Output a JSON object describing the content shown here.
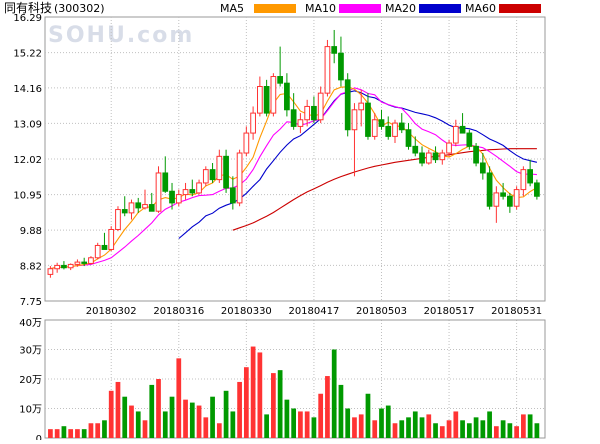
{
  "header": {
    "title": "同有科技",
    "code": "(300302)",
    "watermark": "SOHU.com"
  },
  "legend": [
    {
      "label": "MA5",
      "color": "#ff9900"
    },
    {
      "label": "MA10",
      "color": "#ff00ff"
    },
    {
      "label": "MA20",
      "color": "#0000cc"
    },
    {
      "label": "MA60",
      "color": "#cc0000"
    }
  ],
  "colors": {
    "up": "#ff3333",
    "down": "#009900",
    "grid": "#c0c0c0"
  },
  "chart_data": [
    {
      "type": "candlestick",
      "price_ticks": [
        "16.29",
        "15.22",
        "14.16",
        "13.09",
        "12.02",
        "10.95",
        "9.88",
        "8.82",
        "7.75"
      ],
      "ylim": [
        7.75,
        16.29
      ],
      "x_labels": [
        {
          "label": "20180302",
          "idx": 9
        },
        {
          "label": "20180316",
          "idx": 19
        },
        {
          "label": "20180330",
          "idx": 29
        },
        {
          "label": "20180417",
          "idx": 39
        },
        {
          "label": "20180503",
          "idx": 49
        },
        {
          "label": "20180517",
          "idx": 59
        },
        {
          "label": "20180531",
          "idx": 69
        }
      ],
      "ohlc": [
        [
          8.55,
          8.8,
          8.45,
          8.72
        ],
        [
          8.72,
          8.9,
          8.6,
          8.82
        ],
        [
          8.82,
          8.95,
          8.7,
          8.75
        ],
        [
          8.75,
          8.88,
          8.68,
          8.85
        ],
        [
          8.85,
          9.0,
          8.78,
          8.92
        ],
        [
          8.92,
          9.05,
          8.8,
          8.88
        ],
        [
          8.88,
          9.1,
          8.85,
          9.05
        ],
        [
          9.05,
          9.5,
          9.0,
          9.42
        ],
        [
          9.42,
          9.8,
          9.35,
          9.3
        ],
        [
          9.3,
          10.0,
          9.25,
          9.9
        ],
        [
          9.9,
          10.6,
          9.85,
          10.5
        ],
        [
          10.5,
          10.9,
          10.3,
          10.4
        ],
        [
          10.4,
          10.8,
          10.2,
          10.7
        ],
        [
          10.7,
          10.85,
          10.4,
          10.55
        ],
        [
          10.55,
          11.1,
          10.5,
          10.65
        ],
        [
          10.65,
          11.0,
          10.5,
          10.45
        ],
        [
          10.45,
          11.8,
          10.4,
          11.6
        ],
        [
          11.6,
          12.1,
          11.0,
          11.05
        ],
        [
          11.05,
          11.3,
          10.5,
          10.7
        ],
        [
          10.7,
          11.1,
          10.6,
          10.95
        ],
        [
          10.95,
          11.3,
          10.8,
          11.1
        ],
        [
          11.1,
          11.4,
          10.9,
          11.0
        ],
        [
          11.0,
          11.4,
          10.95,
          11.3
        ],
        [
          11.3,
          11.8,
          11.2,
          11.7
        ],
        [
          11.7,
          11.9,
          11.3,
          11.4
        ],
        [
          11.4,
          12.3,
          11.3,
          12.1
        ],
        [
          12.1,
          12.3,
          11.0,
          11.15
        ],
        [
          11.15,
          11.5,
          10.5,
          10.7
        ],
        [
          10.7,
          12.3,
          10.6,
          12.2
        ],
        [
          12.2,
          13.0,
          12.1,
          12.8
        ],
        [
          12.8,
          13.6,
          12.6,
          13.4
        ],
        [
          13.4,
          14.5,
          13.3,
          14.2
        ],
        [
          14.2,
          14.4,
          13.3,
          13.4
        ],
        [
          13.4,
          14.6,
          13.3,
          14.5
        ],
        [
          14.5,
          15.4,
          14.2,
          14.3
        ],
        [
          14.3,
          14.6,
          13.3,
          13.5
        ],
        [
          13.5,
          14.0,
          12.9,
          13.0
        ],
        [
          13.0,
          13.4,
          12.8,
          13.2
        ],
        [
          13.2,
          13.8,
          13.0,
          13.6
        ],
        [
          13.6,
          13.9,
          13.1,
          13.2
        ],
        [
          13.2,
          14.2,
          13.1,
          14.0
        ],
        [
          14.0,
          15.6,
          13.9,
          15.4
        ],
        [
          15.4,
          15.9,
          14.9,
          15.2
        ],
        [
          15.2,
          15.7,
          14.2,
          14.4
        ],
        [
          14.4,
          14.6,
          12.7,
          12.9
        ],
        [
          12.9,
          13.7,
          11.5,
          13.5
        ],
        [
          13.5,
          14.1,
          13.0,
          13.7
        ],
        [
          13.7,
          14.0,
          12.6,
          12.7
        ],
        [
          12.7,
          13.4,
          12.6,
          13.2
        ],
        [
          13.2,
          13.5,
          12.9,
          13.0
        ],
        [
          13.0,
          13.3,
          12.6,
          12.7
        ],
        [
          12.7,
          13.2,
          12.5,
          13.1
        ],
        [
          13.1,
          13.4,
          12.8,
          12.9
        ],
        [
          12.9,
          13.1,
          12.3,
          12.4
        ],
        [
          12.4,
          12.7,
          12.1,
          12.2
        ],
        [
          12.2,
          12.4,
          11.8,
          11.9
        ],
        [
          11.9,
          12.3,
          11.85,
          12.2
        ],
        [
          12.2,
          12.4,
          11.9,
          12.0
        ],
        [
          12.0,
          12.3,
          11.85,
          12.2
        ],
        [
          12.2,
          12.6,
          12.1,
          12.5
        ],
        [
          12.5,
          13.2,
          12.4,
          13.0
        ],
        [
          13.0,
          13.4,
          12.8,
          12.8
        ],
        [
          12.8,
          12.9,
          12.3,
          12.4
        ],
        [
          12.4,
          12.5,
          11.8,
          11.9
        ],
        [
          11.9,
          12.2,
          11.4,
          11.6
        ],
        [
          11.6,
          11.8,
          10.5,
          10.6
        ],
        [
          10.6,
          11.2,
          10.1,
          11.0
        ],
        [
          11.0,
          11.3,
          10.8,
          10.9
        ],
        [
          10.9,
          11.0,
          10.4,
          10.6
        ],
        [
          10.6,
          11.2,
          10.5,
          11.1
        ],
        [
          11.1,
          11.8,
          10.9,
          11.7
        ],
        [
          11.7,
          12.0,
          11.2,
          11.3
        ],
        [
          11.3,
          11.4,
          10.8,
          10.9
        ]
      ],
      "ma5": [
        8.72,
        8.77,
        8.76,
        8.79,
        8.81,
        8.85,
        8.89,
        9.02,
        9.13,
        9.31,
        9.61,
        9.9,
        10.14,
        10.41,
        10.56,
        10.59,
        10.79,
        10.86,
        10.81,
        10.86,
        10.97,
        10.94,
        11.01,
        11.21,
        11.3,
        11.52,
        11.55,
        11.41,
        11.51,
        11.77,
        12.07,
        12.66,
        13.16,
        13.7,
        13.96,
        13.99,
        13.74,
        13.46,
        13.37,
        13.31,
        13.38,
        13.76,
        14.1,
        14.18,
        14.19,
        14.12,
        13.95,
        13.7,
        13.38,
        13.0,
        13.13,
        13.02,
        12.99,
        12.82,
        12.62,
        12.45,
        12.34,
        12.24,
        12.12,
        12.08,
        12.18,
        12.31,
        12.41,
        12.4,
        12.17,
        11.74,
        11.38,
        11.16,
        10.97,
        10.86,
        10.88,
        11.04,
        11.16
      ],
      "ma10": [
        8.72,
        8.77,
        8.76,
        8.79,
        8.81,
        8.83,
        8.85,
        8.91,
        8.97,
        9.05,
        9.21,
        9.37,
        9.55,
        9.72,
        9.91,
        10.1,
        10.34,
        10.51,
        10.61,
        10.72,
        10.78,
        10.86,
        10.92,
        10.93,
        10.95,
        11.05,
        11.14,
        11.15,
        11.24,
        11.42,
        11.7,
        12.09,
        12.42,
        12.74,
        12.92,
        13.14,
        13.12,
        13.03,
        13.09,
        13.17,
        13.22,
        13.47,
        13.74,
        13.98,
        14.04,
        14.16,
        14.1,
        13.99,
        13.95,
        13.73,
        13.66,
        13.6,
        13.54,
        13.33,
        13.08,
        12.92,
        12.84,
        12.75,
        12.59,
        12.45,
        12.43,
        12.44,
        12.45,
        12.4,
        12.36,
        12.24,
        12.1,
        11.95,
        11.8,
        11.64,
        11.56,
        11.57,
        11.55
      ],
      "ma20": [
        null,
        null,
        null,
        null,
        null,
        null,
        null,
        null,
        null,
        null,
        null,
        null,
        null,
        null,
        null,
        null,
        null,
        null,
        null,
        9.63,
        9.8,
        9.98,
        10.12,
        10.31,
        10.39,
        10.54,
        10.63,
        10.7,
        10.82,
        10.99,
        11.2,
        11.4,
        11.72,
        11.97,
        12.22,
        12.44,
        12.62,
        12.72,
        12.89,
        13.06,
        13.23,
        13.5,
        13.77,
        13.97,
        14.02,
        14.07,
        14.01,
        13.9,
        13.86,
        13.75,
        13.65,
        13.58,
        13.55,
        13.49,
        13.42,
        13.38,
        13.33,
        13.26,
        13.16,
        13.04,
        12.96,
        12.95,
        12.93,
        12.87,
        12.75,
        12.62,
        12.53,
        12.43,
        12.27,
        12.13,
        12.02,
        11.97,
        11.92
      ],
      "ma60": [
        null,
        null,
        null,
        null,
        null,
        null,
        null,
        null,
        null,
        null,
        null,
        null,
        null,
        null,
        null,
        null,
        null,
        null,
        null,
        null,
        null,
        null,
        null,
        null,
        null,
        null,
        null,
        9.88,
        9.95,
        10.02,
        10.1,
        10.2,
        10.3,
        10.41,
        10.54,
        10.67,
        10.8,
        10.92,
        11.03,
        11.12,
        11.22,
        11.32,
        11.41,
        11.49,
        11.56,
        11.63,
        11.69,
        11.75,
        11.8,
        11.84,
        11.88,
        11.92,
        11.95,
        11.98,
        12.01,
        12.04,
        12.07,
        12.1,
        12.12,
        12.15,
        12.18,
        12.21,
        12.24,
        12.26,
        12.28,
        12.3,
        12.31,
        12.32,
        12.33,
        12.33,
        12.33,
        12.33,
        12.33
      ]
    },
    {
      "type": "bar",
      "volume_ticks": [
        "40万",
        "30万",
        "20万",
        "10万",
        "0"
      ],
      "ylim": [
        0,
        40
      ],
      "volume": [
        3,
        3,
        4,
        3,
        3,
        3,
        5,
        5,
        6,
        16,
        19,
        14,
        11,
        9,
        6,
        18,
        20,
        9,
        14,
        27,
        13,
        12,
        11,
        7,
        14,
        5,
        16,
        9,
        19,
        24,
        31,
        29,
        8,
        22,
        23,
        13,
        10,
        9,
        9,
        7,
        15,
        21,
        30,
        18,
        10,
        7,
        8,
        15,
        6,
        10,
        11,
        5,
        6,
        7,
        9,
        7,
        8,
        5,
        4,
        6,
        9,
        6,
        5,
        7,
        6,
        9,
        4,
        6,
        5,
        4,
        8,
        8,
        5
      ]
    }
  ]
}
